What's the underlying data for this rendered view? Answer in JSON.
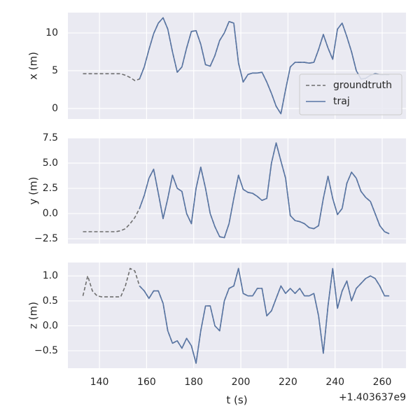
{
  "chart_data": [
    {
      "type": "line",
      "ylabel": "x (m)",
      "legend": "lower right",
      "grid": true,
      "xlim": [
        126.6,
        270.1
      ],
      "xticks": [
        140,
        160,
        180,
        200,
        220,
        240,
        260
      ],
      "ylim": [
        -1.39,
        12.69
      ],
      "yticks": [
        0,
        5,
        10
      ],
      "x": [
        133,
        135,
        137,
        139,
        141,
        143,
        145,
        147,
        149,
        151,
        153,
        155,
        157,
        159,
        161,
        163,
        165,
        167,
        169,
        171,
        173,
        175,
        177,
        179,
        181,
        183,
        185,
        187,
        189,
        191,
        193,
        195,
        197,
        199,
        201,
        203,
        205,
        207,
        209,
        211,
        213,
        215,
        217,
        219,
        221,
        223,
        225,
        227,
        229,
        231,
        233,
        235,
        237,
        239,
        241,
        243,
        245,
        247,
        249,
        251,
        253,
        255,
        257,
        259,
        261,
        263
      ],
      "series": [
        {
          "name": "groundtruth",
          "color": "#6e6e6e",
          "linestyle": "dashed",
          "values": [
            4.6,
            4.6,
            4.6,
            4.6,
            4.6,
            4.6,
            4.6,
            4.6,
            4.6,
            4.4,
            4.1,
            3.7,
            3.9,
            5.5,
            7.8,
            9.9,
            11.3,
            12.0,
            10.5,
            7.5,
            4.8,
            5.5,
            8.0,
            10.2,
            10.3,
            8.5,
            5.8,
            5.6,
            7.0,
            9.0,
            10.0,
            11.5,
            11.3,
            6.0,
            3.5,
            4.5,
            4.7,
            4.7,
            4.8,
            3.5,
            2.0,
            0.3,
            -0.7,
            2.5,
            5.5,
            6.1,
            6.1,
            6.1,
            6.0,
            6.1,
            7.8,
            9.8,
            8.0,
            6.5,
            10.5,
            11.3,
            9.5,
            7.5,
            5.0,
            3.9,
            4.0,
            4.4,
            4.6,
            4.5,
            4.5,
            4.5
          ]
        },
        {
          "name": "traj",
          "color": "#5875a4",
          "linestyle": "solid",
          "values": [
            null,
            null,
            null,
            null,
            null,
            null,
            null,
            null,
            null,
            null,
            null,
            null,
            3.9,
            5.5,
            7.8,
            9.9,
            11.3,
            12.0,
            10.5,
            7.5,
            4.8,
            5.5,
            8.0,
            10.2,
            10.3,
            8.5,
            5.8,
            5.6,
            7.0,
            9.0,
            10.0,
            11.5,
            11.3,
            6.0,
            3.5,
            4.5,
            4.7,
            4.7,
            4.8,
            3.5,
            2.0,
            0.3,
            -0.7,
            2.5,
            5.5,
            6.1,
            6.1,
            6.1,
            6.0,
            6.1,
            7.8,
            9.8,
            8.0,
            6.5,
            10.5,
            11.3,
            9.5,
            7.5,
            5.0,
            3.9,
            4.0,
            4.4,
            4.6,
            4.5,
            4.5,
            4.5
          ]
        }
      ]
    },
    {
      "type": "line",
      "ylabel": "y (m)",
      "grid": true,
      "xlim": [
        126.6,
        270.1
      ],
      "xticks": [
        140,
        160,
        180,
        200,
        220,
        240,
        260
      ],
      "ylim": [
        -2.98,
        7.5
      ],
      "yticks": [
        {
          "value": -2.5,
          "label": "−2.5"
        },
        {
          "value": 0,
          "label": "0.0"
        },
        2.5,
        {
          "value": 5,
          "label": "5.0"
        },
        7.5
      ],
      "x": [
        133,
        135,
        137,
        139,
        141,
        143,
        145,
        147,
        149,
        151,
        153,
        155,
        157,
        159,
        161,
        163,
        165,
        167,
        169,
        171,
        173,
        175,
        177,
        179,
        181,
        183,
        185,
        187,
        189,
        191,
        193,
        195,
        197,
        199,
        201,
        203,
        205,
        207,
        209,
        211,
        213,
        215,
        217,
        219,
        221,
        223,
        225,
        227,
        229,
        231,
        233,
        235,
        237,
        239,
        241,
        243,
        245,
        247,
        249,
        251,
        253,
        255,
        257,
        259,
        261,
        263
      ],
      "series": [
        {
          "color": "#6e6e6e",
          "linestyle": "dashed",
          "values": [
            -1.8,
            -1.8,
            -1.8,
            -1.8,
            -1.8,
            -1.8,
            -1.8,
            -1.8,
            -1.7,
            -1.5,
            -1.0,
            -0.4,
            0.5,
            1.8,
            3.5,
            4.4,
            2.0,
            -0.5,
            1.5,
            3.8,
            2.5,
            2.2,
            0.0,
            -1.0,
            2.5,
            4.6,
            2.5,
            0.0,
            -1.3,
            -2.3,
            -2.4,
            -1.0,
            1.5,
            3.8,
            2.4,
            2.1,
            2.0,
            1.7,
            1.3,
            1.5,
            5.0,
            7.0,
            5.2,
            3.5,
            -0.2,
            -0.7,
            -0.8,
            -1.0,
            -1.4,
            -1.5,
            -1.2,
            1.5,
            3.7,
            1.5,
            -0.1,
            0.5,
            3.0,
            4.1,
            3.5,
            2.2,
            1.6,
            1.2,
            0.0,
            -1.2,
            -1.8,
            -2.0
          ]
        },
        {
          "color": "#5875a4",
          "linestyle": "solid",
          "values": [
            null,
            null,
            null,
            null,
            null,
            null,
            null,
            null,
            null,
            null,
            null,
            null,
            0.5,
            1.8,
            3.5,
            4.4,
            2.0,
            -0.5,
            1.5,
            3.8,
            2.5,
            2.2,
            0.0,
            -1.0,
            2.5,
            4.6,
            2.5,
            0.0,
            -1.3,
            -2.3,
            -2.4,
            -1.0,
            1.5,
            3.8,
            2.4,
            2.1,
            2.0,
            1.7,
            1.3,
            1.5,
            5.0,
            7.0,
            5.2,
            3.5,
            -0.2,
            -0.7,
            -0.8,
            -1.0,
            -1.4,
            -1.5,
            -1.2,
            1.5,
            3.7,
            1.5,
            -0.1,
            0.5,
            3.0,
            4.1,
            3.5,
            2.2,
            1.6,
            1.2,
            0.0,
            -1.2,
            -1.8,
            -2.0
          ]
        }
      ]
    },
    {
      "type": "line",
      "ylabel": "z (m)",
      "xlabel": "t (s)",
      "offset_label": "+1.403637e9",
      "grid": true,
      "xlim": [
        126.6,
        270.1
      ],
      "xticks": [
        140,
        160,
        180,
        200,
        220,
        240,
        260
      ],
      "ylim": [
        -0.85,
        1.27
      ],
      "yticks": [
        {
          "value": -0.5,
          "label": "−0.5"
        },
        {
          "value": 0,
          "label": "0.0"
        },
        0.5,
        {
          "value": 1,
          "label": "1.0"
        }
      ],
      "x": [
        133,
        135,
        137,
        139,
        141,
        143,
        145,
        147,
        149,
        151,
        153,
        155,
        157,
        159,
        161,
        163,
        165,
        167,
        169,
        171,
        173,
        175,
        177,
        179,
        181,
        183,
        185,
        187,
        189,
        191,
        193,
        195,
        197,
        199,
        201,
        203,
        205,
        207,
        209,
        211,
        213,
        215,
        217,
        219,
        221,
        223,
        225,
        227,
        229,
        231,
        233,
        235,
        237,
        239,
        241,
        243,
        245,
        247,
        249,
        251,
        253,
        255,
        257,
        259,
        261,
        263
      ],
      "series": [
        {
          "color": "#6e6e6e",
          "linestyle": "dashed",
          "values": [
            0.6,
            1.0,
            0.7,
            0.6,
            0.58,
            0.58,
            0.58,
            0.58,
            0.58,
            0.8,
            1.15,
            1.1,
            0.8,
            0.7,
            0.55,
            0.7,
            0.7,
            0.45,
            -0.1,
            -0.35,
            -0.3,
            -0.45,
            -0.25,
            -0.4,
            -0.75,
            -0.1,
            0.4,
            0.4,
            0.0,
            -0.1,
            0.5,
            0.75,
            0.8,
            1.15,
            0.65,
            0.6,
            0.6,
            0.75,
            0.75,
            0.2,
            0.3,
            0.55,
            0.8,
            0.65,
            0.75,
            0.65,
            0.75,
            0.6,
            0.6,
            0.65,
            0.2,
            -0.55,
            0.4,
            1.15,
            0.35,
            0.7,
            0.9,
            0.5,
            0.75,
            0.85,
            0.95,
            1.0,
            0.95,
            0.8,
            0.6,
            0.6
          ]
        },
        {
          "color": "#5875a4",
          "linestyle": "solid",
          "values": [
            null,
            null,
            null,
            null,
            null,
            null,
            null,
            null,
            null,
            null,
            null,
            null,
            0.8,
            0.7,
            0.55,
            0.7,
            0.7,
            0.45,
            -0.1,
            -0.35,
            -0.3,
            -0.45,
            -0.25,
            -0.4,
            -0.75,
            -0.1,
            0.4,
            0.4,
            0.0,
            -0.1,
            0.5,
            0.75,
            0.8,
            1.15,
            0.65,
            0.6,
            0.6,
            0.75,
            0.75,
            0.2,
            0.3,
            0.55,
            0.8,
            0.65,
            0.75,
            0.65,
            0.75,
            0.6,
            0.6,
            0.65,
            0.2,
            -0.55,
            0.4,
            1.15,
            0.35,
            0.7,
            0.9,
            0.5,
            0.75,
            0.85,
            0.95,
            1.0,
            0.95,
            0.8,
            0.6,
            0.6
          ]
        }
      ]
    }
  ]
}
